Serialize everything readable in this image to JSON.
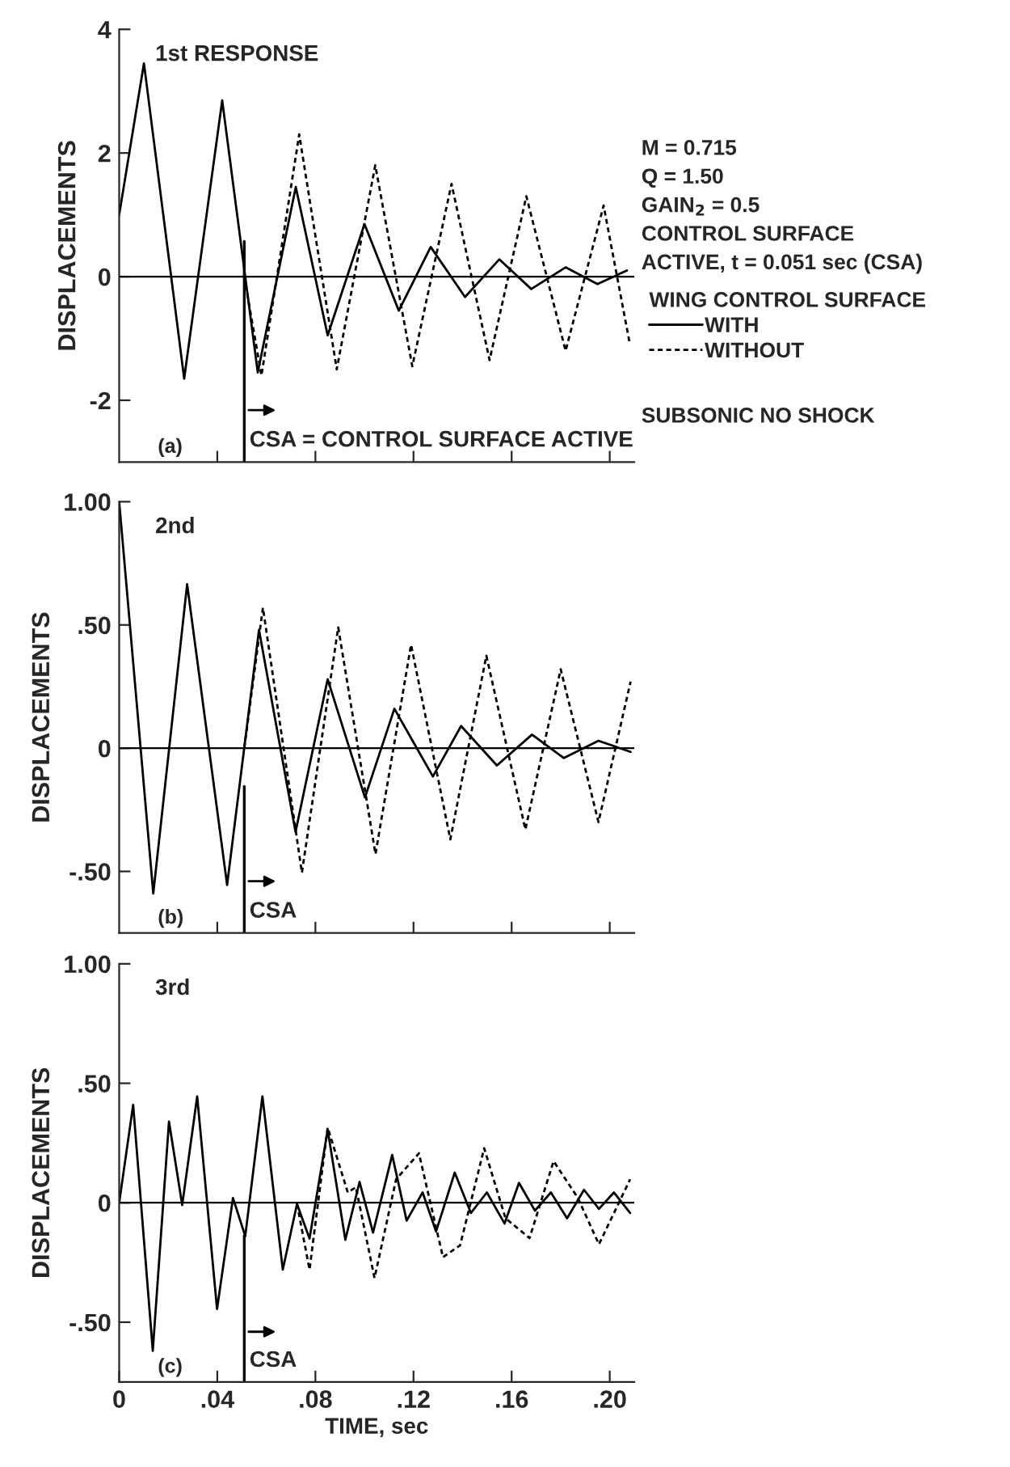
{
  "chart_data": [
    {
      "type": "line",
      "title": "1st RESPONSE",
      "ylabel": "DISPLACEMENTS",
      "legend_title": "WING CONTROL SURFACE",
      "legend": "right",
      "annotations": [
        "M = 0.715",
        "Q = 1.50",
        "GAIN$_{2}$ = 0.5",
        "CONTROL SURFACE",
        "ACTIVE, t = 0.051 sec (CSA)",
        "SUBSONIC NO SHOCK",
        "(a)"
      ],
      "xlim": [
        0,
        0.21
      ],
      "xticks": [
        {
          "value": 0.04,
          "label": null
        },
        {
          "value": 0.08,
          "label": null
        },
        {
          "value": 0.12,
          "label": null
        },
        {
          "value": 0.16,
          "label": null
        },
        {
          "value": 0.2,
          "label": null
        }
      ],
      "ylim": [
        -3,
        4
      ],
      "yticks": [
        -2,
        0,
        2,
        4
      ],
      "tick_labels": "y",
      "grid": false,
      "ref_lines": [
        {
          "axis": "y",
          "value": 0
        },
        {
          "axis": "x",
          "value": 0.051,
          "label": "CSA = CONTROL SURFACE ACTIVE"
        }
      ],
      "series": [
        {
          "name": "WITH",
          "color": "#000000",
          "line_style": "solid",
          "x": [
            0,
            0.0101,
            0.0265,
            0.042,
            0.0565,
            0.072,
            0.085,
            0.1,
            0.114,
            0.127,
            0.141,
            0.155,
            0.168,
            0.182,
            0.195,
            0.207
          ],
          "values": [
            1.0,
            3.45,
            -1.65,
            2.85,
            -1.55,
            1.45,
            -0.95,
            0.85,
            -0.55,
            0.48,
            -0.33,
            0.28,
            -0.2,
            0.15,
            -0.12,
            0.1
          ]
        },
        {
          "name": "WITHOUT",
          "color": "#000000",
          "line_style": "dashed",
          "x": [
            0.051,
            0.058,
            0.0734,
            0.0887,
            0.1044,
            0.1195,
            0.1355,
            0.151,
            0.166,
            0.182,
            0.1975,
            0.208
          ],
          "values": [
            0.0,
            -1.6,
            2.3,
            -1.5,
            1.8,
            -1.45,
            1.5,
            -1.35,
            1.3,
            -1.2,
            1.15,
            -1.05
          ]
        }
      ]
    },
    {
      "type": "line",
      "title": "2nd",
      "ylabel": "DISPLACEMENTS",
      "annotations": [
        "(b)"
      ],
      "xlim": [
        0,
        0.21
      ],
      "xticks": [
        {
          "value": 0.04,
          "label": null
        },
        {
          "value": 0.08,
          "label": null
        },
        {
          "value": 0.12,
          "label": null
        },
        {
          "value": 0.16,
          "label": null
        },
        {
          "value": 0.2,
          "label": null
        }
      ],
      "ylim": [
        -0.75,
        1.0
      ],
      "yticks": [
        {
          "value": -0.5,
          "label": "-.50"
        },
        0,
        {
          "value": 0.5,
          "label": ".50"
        },
        {
          "value": 1.0,
          "label": "1.00"
        }
      ],
      "tick_labels": "y",
      "grid": false,
      "ref_lines": [
        {
          "axis": "y",
          "value": 0
        },
        {
          "axis": "x",
          "value": 0.051,
          "label": "CSA"
        }
      ],
      "series": [
        {
          "color": "#000000",
          "line_style": "solid",
          "x": [
            0,
            0.0139,
            0.0277,
            0.044,
            0.057,
            0.0719,
            0.085,
            0.1002,
            0.1122,
            0.1279,
            0.1394,
            0.154,
            0.1683,
            0.1813,
            0.1954,
            0.2085
          ],
          "values": [
            1.0,
            -0.59,
            0.665,
            -0.555,
            0.48,
            -0.34,
            0.28,
            -0.2,
            0.16,
            -0.115,
            0.09,
            -0.07,
            0.055,
            -0.04,
            0.03,
            -0.015
          ]
        },
        {
          "color": "#000000",
          "line_style": "dashed",
          "x": [
            0.051,
            0.0586,
            0.0745,
            0.0893,
            0.1045,
            0.119,
            0.135,
            0.1497,
            0.1656,
            0.18,
            0.1954,
            0.2085
          ],
          "values": [
            0.0,
            0.57,
            -0.505,
            0.49,
            -0.43,
            0.42,
            -0.37,
            0.375,
            -0.33,
            0.32,
            -0.3,
            0.27
          ]
        }
      ]
    },
    {
      "type": "line",
      "title": "3rd",
      "ylabel": "DISPLACEMENTS",
      "xlabel": "TIME, sec",
      "annotations": [
        "(c)"
      ],
      "xlim": [
        0,
        0.21
      ],
      "xticks": [
        0,
        {
          "value": 0.04,
          "label": ".04"
        },
        {
          "value": 0.08,
          "label": ".08"
        },
        {
          "value": 0.12,
          "label": ".12"
        },
        {
          "value": 0.16,
          "label": ".16"
        },
        {
          "value": 0.2,
          "label": ".20"
        }
      ],
      "ylim": [
        -0.75,
        1.0
      ],
      "yticks": [
        {
          "value": -0.5,
          "label": "-.50"
        },
        0,
        {
          "value": 0.5,
          "label": ".50"
        },
        {
          "value": 1.0,
          "label": "1.00"
        }
      ],
      "grid": false,
      "ref_lines": [
        {
          "axis": "y",
          "value": 0
        },
        {
          "axis": "x",
          "value": 0.051,
          "label": "CSA"
        }
      ],
      "series": [
        {
          "color": "#000000",
          "line_style": "solid",
          "x": [
            0,
            0.0057,
            0.0137,
            0.0203,
            0.0257,
            0.0318,
            0.0399,
            0.0464,
            0.0514,
            0.0584,
            0.0667,
            0.0725,
            0.0776,
            0.085,
            0.0922,
            0.098,
            0.1035,
            0.1113,
            0.1172,
            0.1237,
            0.1292,
            0.1368,
            0.1434,
            0.1499,
            0.1571,
            0.163,
            0.1695,
            0.176,
            0.1826,
            0.1895,
            0.1956,
            0.2017,
            0.2083
          ],
          "values": [
            0.0,
            0.41,
            -0.62,
            0.34,
            -0.01,
            0.445,
            -0.445,
            0.02,
            -0.14,
            0.445,
            -0.28,
            -0.005,
            -0.15,
            0.305,
            -0.155,
            0.087,
            -0.125,
            0.2,
            -0.075,
            0.043,
            -0.12,
            0.126,
            -0.043,
            0.043,
            -0.087,
            0.083,
            -0.033,
            0.043,
            -0.065,
            0.054,
            -0.026,
            0.043,
            -0.043
          ]
        },
        {
          "color": "#000000",
          "line_style": "dashed",
          "x": [
            0.0725,
            0.0776,
            0.085,
            0.0932,
            0.0965,
            0.1041,
            0.1129,
            0.1222,
            0.132,
            0.139,
            0.1488,
            0.1575,
            0.1673,
            0.1771,
            0.1869,
            0.1956,
            0.2083
          ],
          "values": [
            -0.005,
            -0.28,
            0.315,
            0.043,
            0.065,
            -0.315,
            0.098,
            0.207,
            -0.228,
            -0.178,
            0.228,
            -0.065,
            -0.148,
            0.174,
            0.022,
            -0.174,
            0.098
          ]
        }
      ]
    }
  ]
}
